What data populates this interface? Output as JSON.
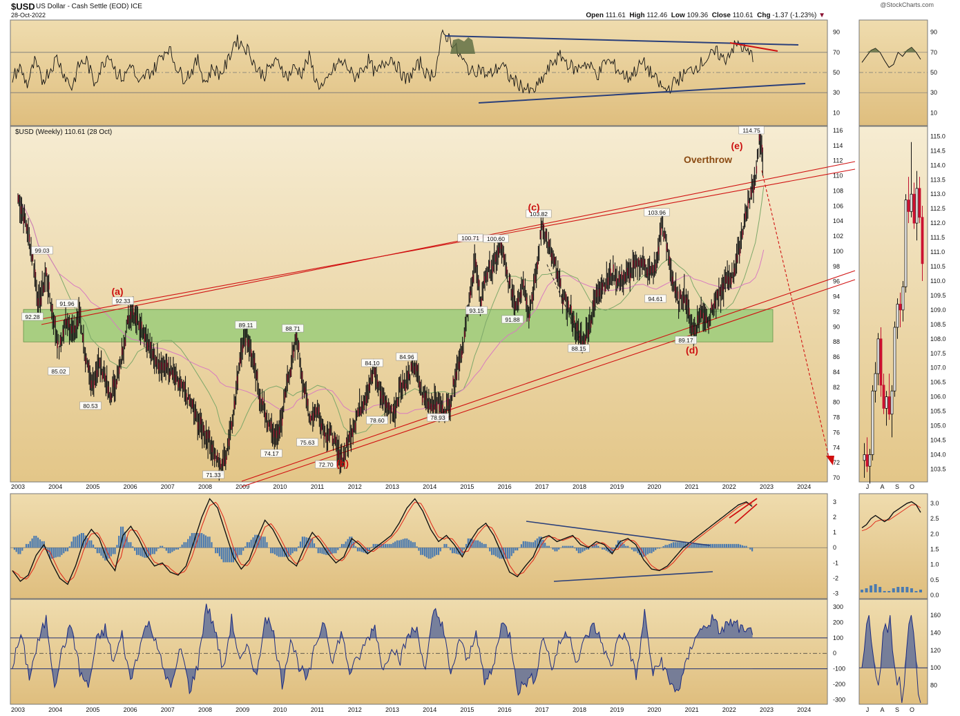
{
  "header": {
    "symbol": "$USD",
    "name": "US Dollar - Cash Settle (EOD)",
    "exchange": "ICE",
    "date": "28-Oct-2022",
    "watermark": "@StockCharts.com",
    "open_label": "Open",
    "open": "111.61",
    "high_label": "High",
    "high": "112.46",
    "low_label": "Low",
    "low": "109.36",
    "close_label": "Close",
    "close": "110.61",
    "chg_label": "Chg",
    "chg": "-1.37 (-1.23%)"
  },
  "colors": {
    "panel_bg": "#e9d29a",
    "green_zone": "#9ccc7a",
    "channel_red": "#d01010",
    "trend_blue": "#2a3f7a",
    "annotation_red": "#cc1111",
    "overthrow": "#8a4a12",
    "sma_green": "#7ea86a",
    "sma_pink": "#d87ac0"
  },
  "chart_data": [
    {
      "type": "line",
      "name": "rsi_panel",
      "yticks": [
        "90",
        "70",
        "50",
        "30",
        "10"
      ],
      "ylim": [
        0,
        100
      ],
      "reference_lines": [
        30,
        50,
        70
      ],
      "values": [
        45,
        55,
        38,
        60,
        42,
        52,
        65,
        48,
        35,
        58,
        62,
        40,
        55,
        70,
        50,
        44,
        60,
        36,
        48,
        52,
        66,
        75,
        58,
        45,
        50,
        62,
        40,
        55,
        48,
        60,
        82,
        78,
        70,
        52,
        48,
        58,
        60,
        45,
        55,
        50,
        65,
        40,
        35,
        50,
        60,
        58,
        45,
        52,
        62,
        48,
        58,
        66,
        55,
        42,
        50,
        60,
        46,
        52,
        88,
        84,
        70,
        58,
        50,
        55,
        46,
        52,
        58,
        45,
        40,
        35,
        30,
        38,
        50,
        62,
        66,
        58,
        52,
        60,
        55,
        48,
        62,
        58,
        50,
        45,
        52,
        60,
        50,
        40,
        32,
        38,
        45,
        50,
        55,
        60,
        66,
        70,
        62,
        74,
        78,
        70,
        66
      ]
    },
    {
      "type": "line",
      "title": "$USD (Weekly) 110.61 (28 Oct)",
      "x": [
        "2003",
        "2004",
        "2005",
        "2006",
        "2007",
        "2008",
        "2009",
        "2010",
        "2011",
        "2012",
        "2013",
        "2014",
        "2015",
        "2016",
        "2017",
        "2018",
        "2019",
        "2020",
        "2021",
        "2022",
        "2023",
        "2024"
      ],
      "ylim": [
        70,
        116
      ],
      "yticks": [
        "116",
        "114",
        "112",
        "110",
        "108",
        "106",
        "104",
        "102",
        "100",
        "98",
        "96",
        "94",
        "92",
        "90",
        "88",
        "86",
        "84",
        "82",
        "80",
        "78",
        "76",
        "74",
        "72",
        "70"
      ],
      "series": [
        {
          "values": [
            [
              2003.0,
              107
            ],
            [
              2003.2,
              104
            ],
            [
              2003.4,
              99
            ],
            [
              2003.55,
              93
            ],
            [
              2003.75,
              97
            ],
            [
              2003.9,
              92.3
            ],
            [
              2004.1,
              87
            ],
            [
              2004.3,
              91
            ],
            [
              2004.5,
              89
            ],
            [
              2004.65,
              91.96
            ],
            [
              2004.8,
              86
            ],
            [
              2004.95,
              82
            ],
            [
              2005.15,
              85
            ],
            [
              2005.3,
              84
            ],
            [
              2005.45,
              80.5
            ],
            [
              2005.7,
              84
            ],
            [
              2005.9,
              90
            ],
            [
              2006.05,
              92.3
            ],
            [
              2006.2,
              91
            ],
            [
              2006.4,
              89
            ],
            [
              2006.6,
              86
            ],
            [
              2006.85,
              85
            ],
            [
              2007.1,
              84
            ],
            [
              2007.35,
              82
            ],
            [
              2007.6,
              80
            ],
            [
              2007.85,
              77
            ],
            [
              2008.1,
              75
            ],
            [
              2008.3,
              72.5
            ],
            [
              2008.4,
              71.33
            ],
            [
              2008.55,
              73
            ],
            [
              2008.8,
              80
            ],
            [
              2008.95,
              87
            ],
            [
              2009.1,
              89.11
            ],
            [
              2009.25,
              86
            ],
            [
              2009.45,
              81
            ],
            [
              2009.7,
              77
            ],
            [
              2009.9,
              75
            ],
            [
              2010.05,
              78
            ],
            [
              2010.2,
              83
            ],
            [
              2010.35,
              86
            ],
            [
              2010.45,
              88.71
            ],
            [
              2010.6,
              83
            ],
            [
              2010.8,
              78
            ],
            [
              2011.0,
              79
            ],
            [
              2011.2,
              76
            ],
            [
              2011.4,
              75.63
            ],
            [
              2011.55,
              73
            ],
            [
              2011.7,
              72.7
            ],
            [
              2011.9,
              76
            ],
            [
              2012.1,
              79
            ],
            [
              2012.3,
              81
            ],
            [
              2012.5,
              84.1
            ],
            [
              2012.7,
              81
            ],
            [
              2012.9,
              79
            ],
            [
              2013.05,
              78.6
            ],
            [
              2013.2,
              82
            ],
            [
              2013.4,
              83
            ],
            [
              2013.6,
              84.96
            ],
            [
              2013.8,
              81
            ],
            [
              2014.0,
              80
            ],
            [
              2014.2,
              80
            ],
            [
              2014.4,
              78.93
            ],
            [
              2014.55,
              80
            ],
            [
              2014.7,
              84
            ],
            [
              2014.9,
              88
            ],
            [
              2015.05,
              93
            ],
            [
              2015.2,
              99
            ],
            [
              2015.35,
              93.15
            ],
            [
              2015.5,
              97
            ],
            [
              2015.7,
              98
            ],
            [
              2015.9,
              100.71
            ],
            [
              2016.1,
              96
            ],
            [
              2016.3,
              93
            ],
            [
              2016.5,
              96
            ],
            [
              2016.65,
              91.88
            ],
            [
              2016.85,
              97
            ],
            [
              2017.0,
              103.82
            ],
            [
              2017.15,
              101
            ],
            [
              2017.35,
              98
            ],
            [
              2017.55,
              94
            ],
            [
              2017.75,
              92
            ],
            [
              2017.95,
              89
            ],
            [
              2018.1,
              88.15
            ],
            [
              2018.3,
              91
            ],
            [
              2018.5,
              95
            ],
            [
              2018.7,
              96
            ],
            [
              2018.9,
              97
            ],
            [
              2019.1,
              96
            ],
            [
              2019.3,
              97
            ],
            [
              2019.5,
              98
            ],
            [
              2019.7,
              98.5
            ],
            [
              2019.9,
              97
            ],
            [
              2020.05,
              98
            ],
            [
              2020.2,
              103.96
            ],
            [
              2020.35,
              100
            ],
            [
              2020.5,
              96
            ],
            [
              2020.65,
              93
            ],
            [
              2020.8,
              94.61
            ],
            [
              2020.95,
              91
            ],
            [
              2021.05,
              89.17
            ],
            [
              2021.25,
              92
            ],
            [
              2021.45,
              91
            ],
            [
              2021.6,
              93
            ],
            [
              2021.75,
              94
            ],
            [
              2021.9,
              96
            ],
            [
              2022.1,
              97
            ],
            [
              2022.25,
              100
            ],
            [
              2022.4,
              104
            ],
            [
              2022.55,
              107
            ],
            [
              2022.7,
              110
            ],
            [
              2022.8,
              114.75
            ],
            [
              2022.87,
              113
            ],
            [
              2022.92,
              111
            ]
          ],
          "color": "#000000"
        }
      ],
      "annotations": [
        "99.03",
        "92.28",
        "91.96",
        "92.33",
        "85.02",
        "80.53",
        "71.33",
        "74.17",
        "75.63",
        "72.70",
        "89.11",
        "88.71",
        "84.10",
        "78.60",
        "84.96",
        "78.93",
        "93.15",
        "100.71",
        "100.60",
        "91.88",
        "103.82",
        "88.15",
        "103.96",
        "94.61",
        "89.17",
        "114.75"
      ],
      "wave_labels": [
        "(a)",
        "(b)",
        "(c)",
        "(d)",
        "(e)"
      ],
      "overthrow_label": "Overthrow"
    },
    {
      "type": "line",
      "name": "macd_panel",
      "ylim": [
        -3.2,
        3.4
      ],
      "yticks": [
        "3",
        "2",
        "1",
        "0",
        "-1",
        "-2",
        "-3"
      ],
      "values": [
        -1.5,
        -2.2,
        -1.8,
        -0.5,
        0.2,
        -1.0,
        -2.0,
        -2.4,
        -1.2,
        0.4,
        1.2,
        0.6,
        -0.8,
        -1.5,
        0.8,
        1.4,
        0.6,
        -0.5,
        -1.2,
        -1.0,
        -1.6,
        -1.8,
        -1.2,
        0.4,
        2.0,
        3.2,
        2.6,
        1.0,
        -0.6,
        -1.4,
        -0.8,
        0.6,
        1.8,
        1.2,
        0.2,
        -0.8,
        -1.2,
        0.0,
        1.0,
        0.4,
        -0.4,
        -1.0,
        -0.6,
        0.6,
        0.2,
        -0.4,
        0.0,
        0.4,
        0.8,
        1.6,
        2.6,
        3.2,
        2.4,
        1.2,
        0.4,
        0.8,
        0.2,
        -0.6,
        0.4,
        1.2,
        1.6,
        0.8,
        -0.4,
        -1.6,
        -1.9,
        -1.2,
        -0.6,
        0.6,
        0.8,
        0.4,
        0.6,
        0.8,
        0.2,
        0.0,
        0.4,
        0.2,
        -0.4,
        0.4,
        0.6,
        0.2,
        -0.8,
        -1.4,
        -1.5,
        -1.2,
        -0.6,
        0.0,
        0.4,
        0.8,
        1.2,
        1.6,
        2.0,
        2.4,
        2.8,
        3.0,
        2.6
      ]
    },
    {
      "type": "line",
      "name": "cci_panel",
      "ylim": [
        -320,
        340
      ],
      "yticks": [
        "300",
        "200",
        "100",
        "0",
        "-100",
        "-200",
        "-300"
      ],
      "reference_lines": [
        -100,
        0,
        100
      ],
      "values": [
        -80,
        120,
        -150,
        60,
        220,
        -200,
        40,
        180,
        -120,
        -220,
        80,
        160,
        -60,
        120,
        -180,
        30,
        200,
        100,
        -140,
        -200,
        40,
        -240,
        -80,
        320,
        160,
        -120,
        220,
        -60,
        40,
        -160,
        260,
        120,
        -200,
        100,
        -80,
        -180,
        60,
        220,
        -60,
        140,
        -120,
        -40,
        80,
        180,
        -120,
        60,
        -40,
        120,
        160,
        -120,
        280,
        200,
        -160,
        100,
        -60,
        160,
        -200,
        -100,
        200,
        120,
        -240,
        -180,
        -160,
        120,
        -100,
        80,
        140,
        -60,
        100,
        180,
        60,
        -100,
        140,
        80,
        -160,
        260,
        -140,
        -40,
        -200,
        -240,
        -60,
        120,
        160,
        220,
        140,
        200,
        180,
        120,
        160
      ]
    }
  ],
  "xaxis_labels": [
    "2003",
    "2004",
    "2005",
    "2006",
    "2007",
    "2008",
    "2009",
    "2010",
    "2011",
    "2012",
    "2013",
    "2014",
    "2015",
    "2016",
    "2017",
    "2018",
    "2019",
    "2020",
    "2021",
    "2022",
    "2023",
    "2024"
  ],
  "side_panels": {
    "month_labels": [
      "J",
      "A",
      "S",
      "O"
    ],
    "rsi_yticks": [
      "90",
      "70",
      "50",
      "30",
      "10"
    ],
    "price_yticks": [
      "115.0",
      "114.5",
      "114.0",
      "113.5",
      "113.0",
      "112.5",
      "112.0",
      "111.5",
      "111.0",
      "110.5",
      "110.0",
      "109.5",
      "109.0",
      "108.5",
      "108.0",
      "107.5",
      "107.0",
      "106.5",
      "106.0",
      "105.5",
      "105.0",
      "104.5",
      "104.0",
      "103.5"
    ],
    "macd_yticks": [
      "3.0",
      "2.5",
      "2.0",
      "1.5",
      "1.0",
      "0.5",
      "0.0"
    ],
    "cci_yticks": [
      "160",
      "140",
      "120",
      "100",
      "80"
    ],
    "daily_candles": [
      [
        103.8,
        104.4,
        103.2,
        104.0
      ],
      [
        104.0,
        104.6,
        103.4,
        103.6
      ],
      [
        103.6,
        104.2,
        103.0,
        104.0
      ],
      [
        104.0,
        106.4,
        103.8,
        106.2
      ],
      [
        106.2,
        107.2,
        105.8,
        106.8
      ],
      [
        106.8,
        108.2,
        106.4,
        108.0
      ],
      [
        108.0,
        108.4,
        106.0,
        106.4
      ],
      [
        106.4,
        106.8,
        105.4,
        105.6
      ],
      [
        105.6,
        106.2,
        105.0,
        106.0
      ],
      [
        106.0,
        106.8,
        105.2,
        105.4
      ],
      [
        105.4,
        106.4,
        104.6,
        106.2
      ],
      [
        106.2,
        108.6,
        106.0,
        108.4
      ],
      [
        108.4,
        109.4,
        108.0,
        109.2
      ],
      [
        109.2,
        109.6,
        108.4,
        109.0
      ],
      [
        109.0,
        110.0,
        108.6,
        109.8
      ],
      [
        109.8,
        113.0,
        109.6,
        112.8
      ],
      [
        112.8,
        113.6,
        112.0,
        112.4
      ],
      [
        112.4,
        114.8,
        112.2,
        113.0
      ],
      [
        113.0,
        113.4,
        111.8,
        112.0
      ],
      [
        112.0,
        113.8,
        111.4,
        113.2
      ],
      [
        113.2,
        113.6,
        112.0,
        112.2
      ],
      [
        112.2,
        112.6,
        110.0,
        110.6
      ]
    ],
    "rsi_values": [
      60,
      66,
      72,
      74,
      70,
      62,
      55,
      58,
      70,
      66,
      72,
      75,
      70,
      63
    ],
    "macd_values": [
      2.2,
      2.3,
      2.5,
      2.6,
      2.5,
      2.4,
      2.5,
      2.7,
      2.8,
      2.9,
      3.0,
      3.05,
      2.95,
      2.7
    ],
    "macd_signal": [
      2.1,
      2.15,
      2.25,
      2.4,
      2.45,
      2.45,
      2.45,
      2.55,
      2.65,
      2.75,
      2.85,
      2.95,
      2.95,
      2.85
    ],
    "macd_hist": [
      0.1,
      0.15,
      0.25,
      0.3,
      0.2,
      0.05,
      0.05,
      0.15,
      0.2,
      0.2,
      0.2,
      0.15,
      0.05,
      -0.1
    ],
    "cci_values": [
      100,
      120,
      150,
      160,
      130,
      110,
      90,
      80,
      100,
      140,
      150,
      140,
      160,
      120,
      100,
      80,
      90,
      60,
      80,
      120,
      150,
      160,
      140,
      110,
      70,
      60
    ]
  }
}
